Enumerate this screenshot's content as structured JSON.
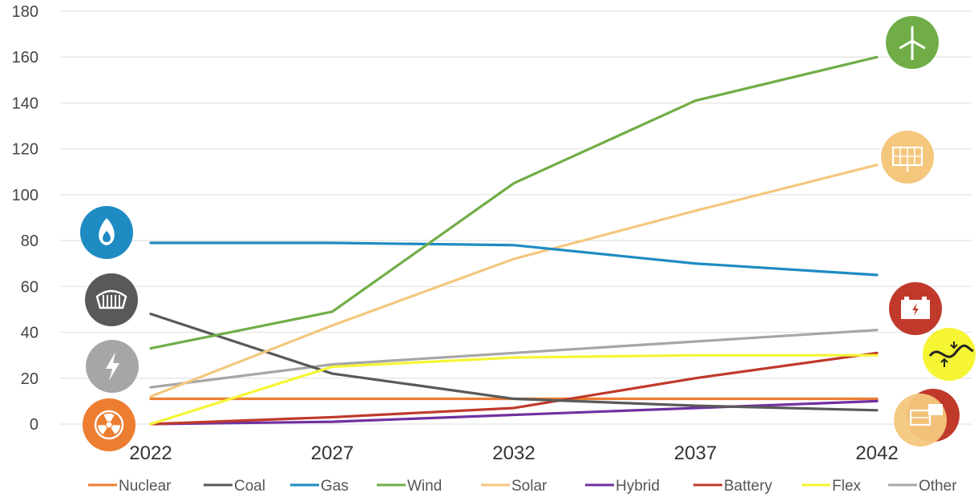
{
  "chart_data": {
    "type": "line",
    "title": "",
    "xlabel": "",
    "ylabel": "",
    "x": [
      "2022",
      "2027",
      "2032",
      "2037",
      "2042"
    ],
    "ylim": [
      0,
      180
    ],
    "yticks": [
      0,
      20,
      40,
      60,
      80,
      100,
      120,
      140,
      160,
      180
    ],
    "grid": true,
    "legend_position": "bottom",
    "series": [
      {
        "name": "Nuclear",
        "color": "#ed7d31",
        "icon": "nuclear-icon",
        "values": [
          11,
          11,
          11,
          11,
          11
        ]
      },
      {
        "name": "Coal",
        "color": "#595959",
        "icon": "coal-icon",
        "values": [
          48,
          22,
          11,
          8,
          6
        ]
      },
      {
        "name": "Gas",
        "color": "#1e8bc3",
        "icon": "gas-flame-icon",
        "values": [
          79,
          79,
          78,
          70,
          65
        ]
      },
      {
        "name": "Wind",
        "color": "#70ad47",
        "icon": "wind-turbine-icon",
        "values": [
          33,
          49,
          105,
          141,
          160
        ]
      },
      {
        "name": "Solar",
        "color": "#f4c77d",
        "icon": "solar-panel-icon",
        "values": [
          12,
          43,
          72,
          93,
          113
        ]
      },
      {
        "name": "Hybrid",
        "color": "#7030a0",
        "icon": "hybrid-icon",
        "values": [
          0,
          1,
          4,
          7,
          10
        ]
      },
      {
        "name": "Battery",
        "color": "#c0392b",
        "icon": "battery-icon",
        "values": [
          0,
          3,
          7,
          20,
          31
        ]
      },
      {
        "name": "Flex",
        "color": "#f5f534",
        "icon": "flex-icon",
        "values": [
          0,
          25,
          29,
          30,
          30
        ]
      },
      {
        "name": "Other",
        "color": "#a6a6a6",
        "icon": "lightning-icon",
        "values": [
          16,
          26,
          31,
          36,
          41
        ]
      }
    ]
  }
}
